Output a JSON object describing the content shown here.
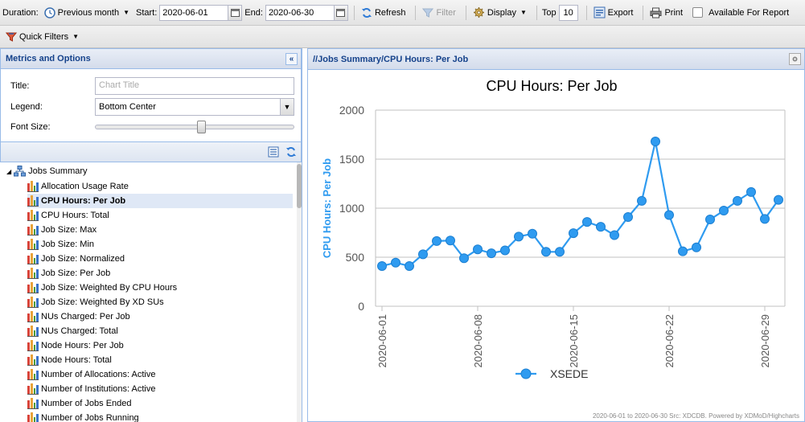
{
  "toolbar": {
    "duration_label": "Duration:",
    "duration_value": "Previous month",
    "start_label": "Start:",
    "start_value": "2020-06-01",
    "end_label": "End:",
    "end_value": "2020-06-30",
    "refresh_label": "Refresh",
    "filter_label": "Filter",
    "display_label": "Display",
    "top_label": "Top",
    "top_value": "10",
    "export_label": "Export",
    "print_label": "Print",
    "available_label": "Available For Report",
    "quick_filters_label": "Quick Filters"
  },
  "left_panel": {
    "title": "Metrics and Options",
    "collapse_symbol": "«",
    "title_label": "Title:",
    "title_placeholder": "Chart Title",
    "legend_label": "Legend:",
    "legend_value": "Bottom Center",
    "font_size_label": "Font Size:",
    "font_size_slider": 0.53
  },
  "tree": {
    "root": "Jobs Summary",
    "items": [
      "Allocation Usage Rate",
      "CPU Hours: Per Job",
      "CPU Hours: Total",
      "Job Size: Max",
      "Job Size: Min",
      "Job Size: Normalized",
      "Job Size: Per Job",
      "Job Size: Weighted By CPU Hours",
      "Job Size: Weighted By XD SUs",
      "NUs Charged: Per Job",
      "NUs Charged: Total",
      "Node Hours: Per Job",
      "Node Hours: Total",
      "Number of Allocations: Active",
      "Number of Institutions: Active",
      "Number of Jobs Ended",
      "Number of Jobs Running"
    ],
    "selected_index": 1
  },
  "right_panel": {
    "title": "//Jobs Summary/CPU Hours: Per Job"
  },
  "chart_data": {
    "type": "line",
    "title": "CPU Hours: Per Job",
    "xlabel": "",
    "ylabel": "CPU Hours: Per Job",
    "ylim": [
      0,
      2000
    ],
    "yticks": [
      0,
      500,
      1000,
      1500,
      2000
    ],
    "x": [
      "2020-06-01",
      "2020-06-02",
      "2020-06-03",
      "2020-06-04",
      "2020-06-05",
      "2020-06-06",
      "2020-06-07",
      "2020-06-08",
      "2020-06-09",
      "2020-06-10",
      "2020-06-11",
      "2020-06-12",
      "2020-06-13",
      "2020-06-14",
      "2020-06-15",
      "2020-06-16",
      "2020-06-17",
      "2020-06-18",
      "2020-06-19",
      "2020-06-20",
      "2020-06-21",
      "2020-06-22",
      "2020-06-23",
      "2020-06-24",
      "2020-06-25",
      "2020-06-26",
      "2020-06-27",
      "2020-06-28",
      "2020-06-29",
      "2020-06-30"
    ],
    "xtick_labels": [
      "2020-06-01",
      "2020-06-08",
      "2020-06-15",
      "2020-06-22",
      "2020-06-29"
    ],
    "series": [
      {
        "name": "XSEDE",
        "color": "#2f9bf0",
        "values": [
          410,
          445,
          410,
          530,
          665,
          670,
          490,
          580,
          540,
          570,
          710,
          740,
          555,
          555,
          745,
          860,
          810,
          725,
          910,
          1075,
          1680,
          930,
          560,
          600,
          885,
          975,
          1075,
          1165,
          890,
          1085
        ]
      }
    ],
    "legend": "bottom-center",
    "grid": true,
    "credits": "2020-06-01 to 2020-06-30 Src: XDCDB. Powered by XDMoD/Highcharts"
  }
}
